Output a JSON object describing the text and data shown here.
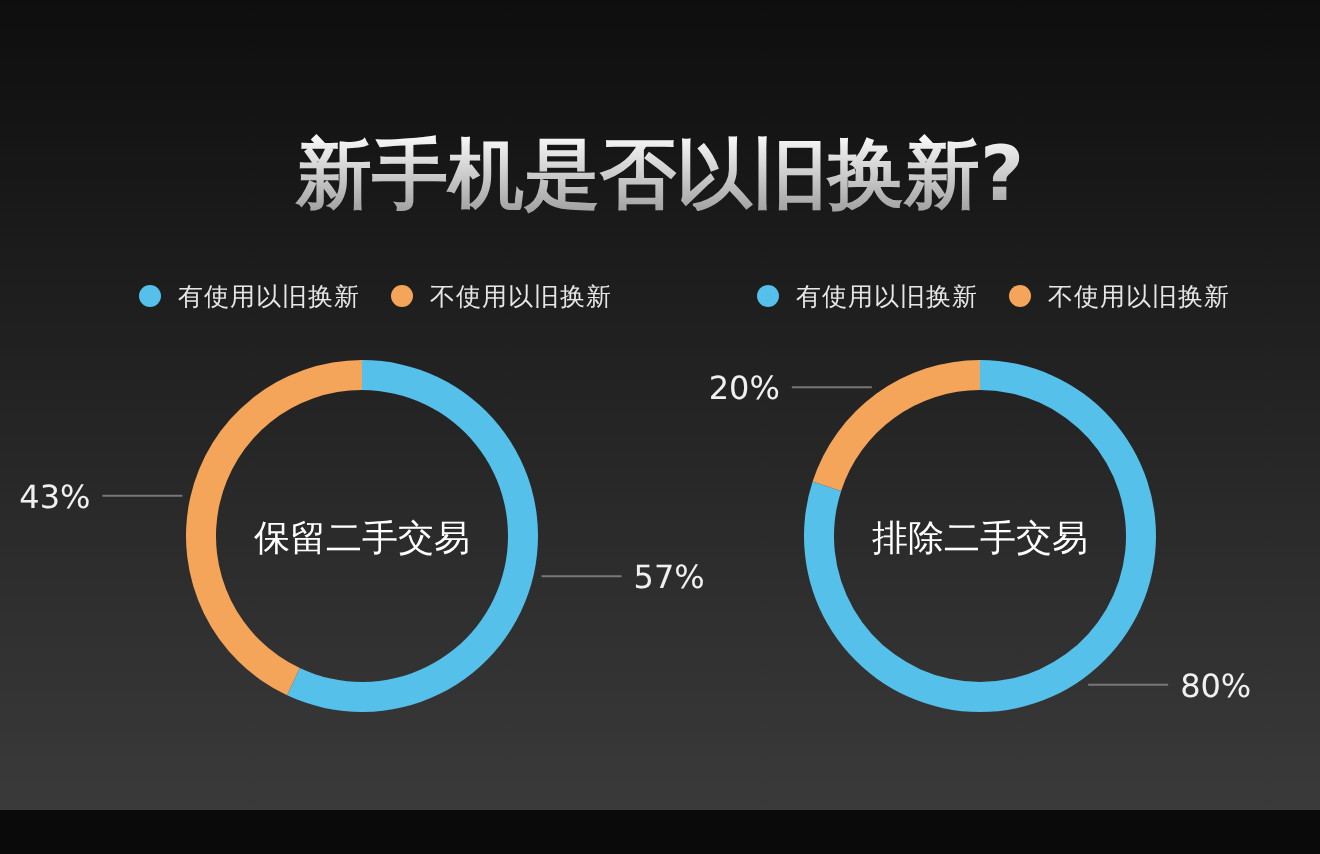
{
  "chart_data": [
    {
      "type": "donut",
      "title": "新手机是否以旧换新?",
      "categories": [
        "有使用以旧换新",
        "不使用以旧换新"
      ],
      "values": [
        57,
        43
      ],
      "colors": [
        "#55c0ea",
        "#f4a55a"
      ],
      "value_labels": [
        "57%",
        "43%"
      ],
      "annotations": [
        "保留二手交易"
      ],
      "legend": "top"
    },
    {
      "type": "donut",
      "categories": [
        "有使用以旧换新",
        "不使用以旧换新"
      ],
      "values": [
        80,
        20
      ],
      "colors": [
        "#55c0ea",
        "#f4a55a"
      ],
      "value_labels": [
        "80%",
        "20%"
      ],
      "annotations": [
        "排除二手交易"
      ],
      "legend": "top"
    }
  ]
}
